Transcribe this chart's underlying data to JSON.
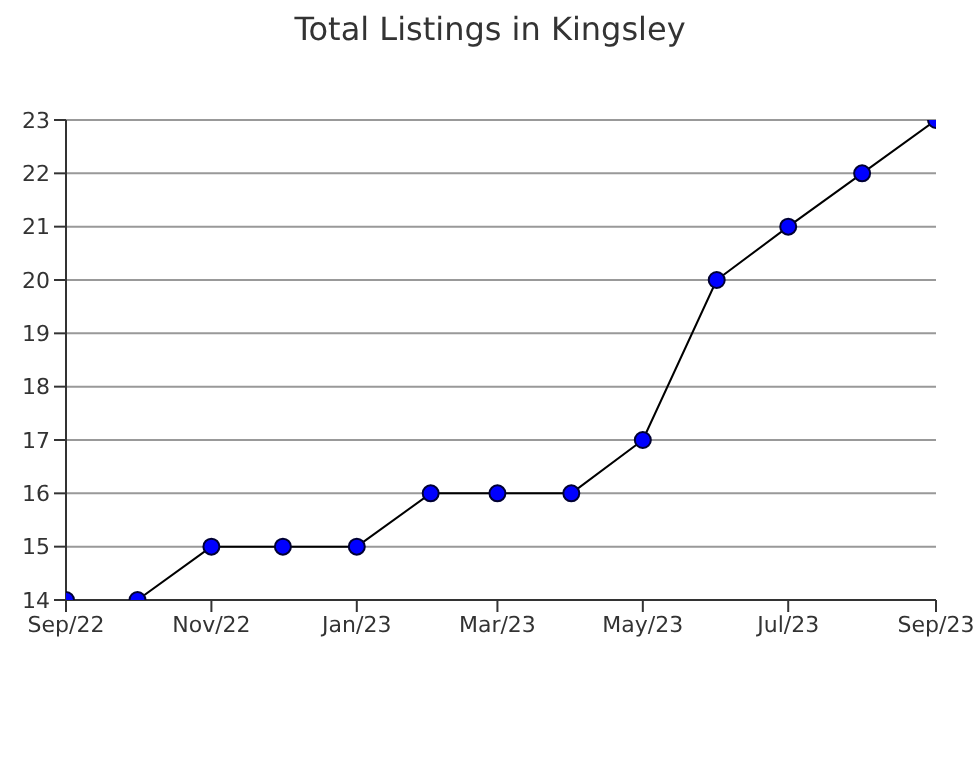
{
  "chart_data": {
    "type": "line",
    "title": "Total Listings in Kingsley",
    "x": [
      "2022-09",
      "2022-10",
      "2022-11",
      "2022-12",
      "2023-01",
      "2023-02",
      "2023-03",
      "2023-04",
      "2023-05",
      "2023-06",
      "2023-07",
      "2023-08",
      "2023-09"
    ],
    "series": [
      {
        "color": "#0000ff",
        "values": [
          14,
          14,
          15,
          15,
          15,
          16,
          16,
          16,
          17,
          20,
          21,
          22,
          23
        ]
      }
    ],
    "xlim": [
      "2022-09",
      "2023-09"
    ],
    "xticks": [
      {
        "value": "2022-09",
        "label": "Sep/22"
      },
      {
        "value": "2022-11",
        "label": "Nov/22"
      },
      {
        "value": "2023-01",
        "label": "Jan/23"
      },
      {
        "value": "2023-03",
        "label": "Mar/23"
      },
      {
        "value": "2023-05",
        "label": "May/23"
      },
      {
        "value": "2023-07",
        "label": "Jul/23"
      },
      {
        "value": "2023-09",
        "label": "Sep/23"
      }
    ],
    "ylim": [
      14,
      23
    ],
    "yticks": [
      14,
      15,
      16,
      17,
      18,
      19,
      20,
      21,
      22,
      23
    ],
    "grid": "y",
    "marker": "circle",
    "line_style": "solid",
    "legend": false
  }
}
